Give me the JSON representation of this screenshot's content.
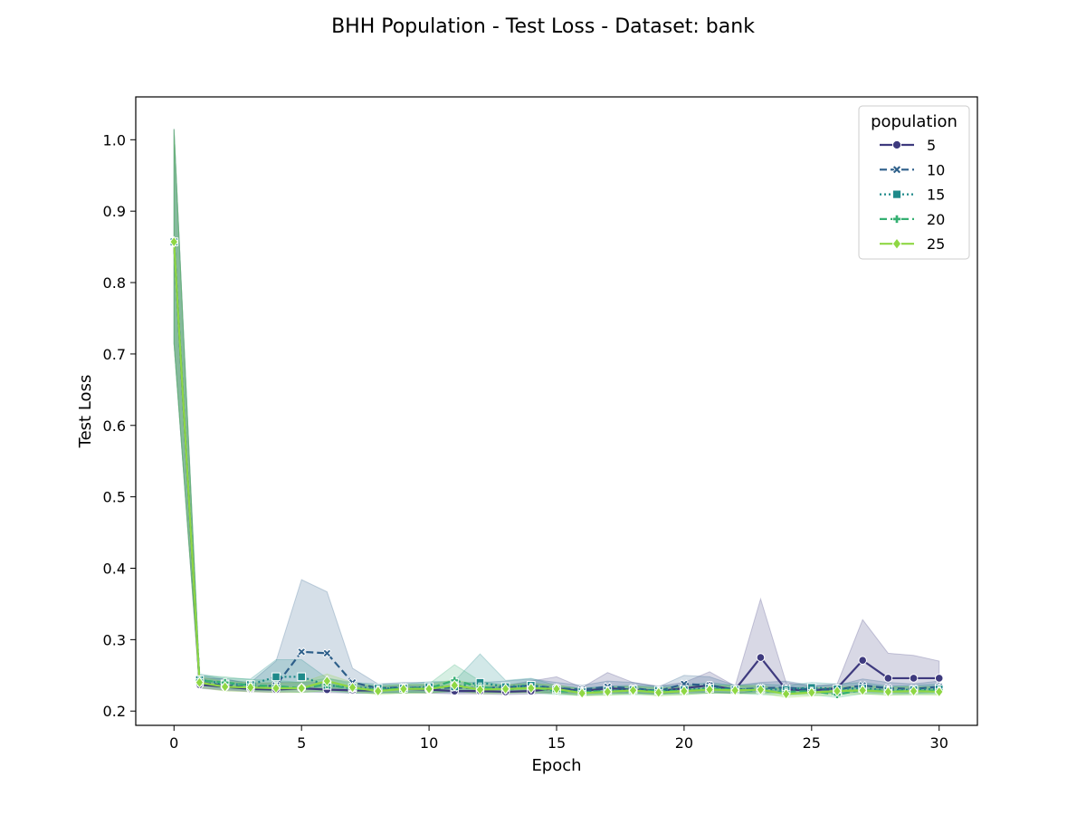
{
  "chart_data": {
    "type": "line",
    "title": "BHH Population - Test Loss - Dataset: bank",
    "xlabel": "Epoch",
    "ylabel": "Test Loss",
    "xlim": [
      -1.5,
      31.5
    ],
    "ylim": [
      0.18,
      1.06
    ],
    "xticks": [
      0,
      5,
      10,
      15,
      20,
      25,
      30
    ],
    "yticks": [
      0.2,
      0.3,
      0.4,
      0.5,
      0.6,
      0.7,
      0.8,
      0.9,
      1.0
    ],
    "xtick_labels": [
      "0",
      "5",
      "10",
      "15",
      "20",
      "25",
      "30"
    ],
    "ytick_labels": [
      "0.2",
      "0.3",
      "0.4",
      "0.5",
      "0.6",
      "0.7",
      "0.8",
      "0.9",
      "1.0"
    ],
    "grid": false,
    "legend": {
      "title": "population",
      "placement": "top-right"
    },
    "x": [
      0,
      1,
      2,
      3,
      4,
      5,
      6,
      7,
      8,
      9,
      10,
      11,
      12,
      13,
      14,
      15,
      16,
      17,
      18,
      19,
      20,
      21,
      22,
      23,
      24,
      25,
      26,
      27,
      28,
      29,
      30
    ],
    "series": [
      {
        "name": "5",
        "color": "#3e3a7e",
        "marker": "circle",
        "dash": "solid",
        "values": [
          0.857,
          0.237,
          0.234,
          0.231,
          0.23,
          0.232,
          0.23,
          0.229,
          0.229,
          0.231,
          0.23,
          0.228,
          0.228,
          0.227,
          0.228,
          0.232,
          0.228,
          0.232,
          0.23,
          0.228,
          0.232,
          0.236,
          0.23,
          0.275,
          0.23,
          0.229,
          0.232,
          0.271,
          0.246,
          0.246,
          0.246
        ],
        "band_low": [
          0.715,
          0.232,
          0.229,
          0.227,
          0.226,
          0.227,
          0.226,
          0.225,
          0.225,
          0.226,
          0.225,
          0.224,
          0.224,
          0.223,
          0.224,
          0.225,
          0.224,
          0.225,
          0.225,
          0.224,
          0.225,
          0.226,
          0.225,
          0.228,
          0.225,
          0.225,
          0.226,
          0.23,
          0.228,
          0.228,
          0.228
        ],
        "band_high": [
          1.015,
          0.246,
          0.245,
          0.238,
          0.24,
          0.24,
          0.24,
          0.235,
          0.234,
          0.236,
          0.236,
          0.234,
          0.233,
          0.236,
          0.242,
          0.248,
          0.233,
          0.254,
          0.24,
          0.235,
          0.24,
          0.255,
          0.235,
          0.357,
          0.24,
          0.235,
          0.238,
          0.328,
          0.281,
          0.278,
          0.27
        ]
      },
      {
        "name": "10",
        "color": "#2d5f8a",
        "marker": "x",
        "dash": "dashed",
        "values": [
          0.857,
          0.24,
          0.236,
          0.233,
          0.236,
          0.283,
          0.281,
          0.24,
          0.232,
          0.233,
          0.232,
          0.233,
          0.232,
          0.233,
          0.236,
          0.232,
          0.23,
          0.234,
          0.232,
          0.228,
          0.238,
          0.236,
          0.23,
          0.232,
          0.233,
          0.23,
          0.23,
          0.236,
          0.232,
          0.231,
          0.234
        ],
        "band_low": [
          0.715,
          0.233,
          0.23,
          0.228,
          0.228,
          0.23,
          0.229,
          0.228,
          0.226,
          0.227,
          0.226,
          0.226,
          0.226,
          0.226,
          0.227,
          0.226,
          0.225,
          0.226,
          0.226,
          0.223,
          0.227,
          0.227,
          0.225,
          0.226,
          0.226,
          0.225,
          0.225,
          0.227,
          0.226,
          0.225,
          0.227
        ],
        "band_high": [
          1.015,
          0.25,
          0.244,
          0.24,
          0.27,
          0.384,
          0.367,
          0.26,
          0.238,
          0.24,
          0.24,
          0.24,
          0.24,
          0.242,
          0.245,
          0.24,
          0.236,
          0.242,
          0.24,
          0.234,
          0.25,
          0.248,
          0.236,
          0.24,
          0.242,
          0.236,
          0.236,
          0.245,
          0.24,
          0.238,
          0.242
        ]
      },
      {
        "name": "15",
        "color": "#1f8a8a",
        "marker": "square",
        "dash": "dotted",
        "values": [
          0.857,
          0.244,
          0.238,
          0.237,
          0.248,
          0.248,
          0.236,
          0.233,
          0.232,
          0.232,
          0.234,
          0.234,
          0.24,
          0.234,
          0.236,
          0.23,
          0.227,
          0.229,
          0.23,
          0.229,
          0.23,
          0.232,
          0.23,
          0.231,
          0.23,
          0.233,
          0.231,
          0.232,
          0.229,
          0.23,
          0.231
        ],
        "band_low": [
          0.715,
          0.236,
          0.231,
          0.23,
          0.232,
          0.232,
          0.229,
          0.227,
          0.226,
          0.226,
          0.227,
          0.227,
          0.229,
          0.227,
          0.228,
          0.225,
          0.222,
          0.224,
          0.225,
          0.224,
          0.225,
          0.226,
          0.225,
          0.225,
          0.225,
          0.226,
          0.225,
          0.226,
          0.224,
          0.225,
          0.225
        ],
        "band_high": [
          1.015,
          0.252,
          0.246,
          0.245,
          0.272,
          0.272,
          0.246,
          0.24,
          0.238,
          0.238,
          0.241,
          0.242,
          0.28,
          0.243,
          0.246,
          0.236,
          0.232,
          0.235,
          0.236,
          0.235,
          0.236,
          0.24,
          0.236,
          0.238,
          0.236,
          0.24,
          0.238,
          0.24,
          0.235,
          0.236,
          0.238
        ]
      },
      {
        "name": "20",
        "color": "#35b072",
        "marker": "plus",
        "dash": "dashed",
        "values": [
          0.857,
          0.243,
          0.24,
          0.236,
          0.235,
          0.232,
          0.237,
          0.231,
          0.23,
          0.231,
          0.232,
          0.243,
          0.234,
          0.23,
          0.233,
          0.228,
          0.227,
          0.228,
          0.228,
          0.228,
          0.228,
          0.231,
          0.23,
          0.228,
          0.227,
          0.228,
          0.223,
          0.23,
          0.228,
          0.228,
          0.229
        ],
        "band_low": [
          0.715,
          0.236,
          0.233,
          0.229,
          0.228,
          0.226,
          0.228,
          0.225,
          0.225,
          0.225,
          0.226,
          0.228,
          0.226,
          0.225,
          0.226,
          0.223,
          0.222,
          0.223,
          0.223,
          0.223,
          0.223,
          0.225,
          0.225,
          0.223,
          0.222,
          0.223,
          0.219,
          0.224,
          0.223,
          0.223,
          0.224
        ],
        "band_high": [
          1.015,
          0.25,
          0.248,
          0.244,
          0.243,
          0.24,
          0.246,
          0.238,
          0.236,
          0.237,
          0.238,
          0.265,
          0.242,
          0.236,
          0.24,
          0.234,
          0.232,
          0.234,
          0.234,
          0.233,
          0.234,
          0.237,
          0.236,
          0.234,
          0.232,
          0.234,
          0.228,
          0.236,
          0.234,
          0.234,
          0.235
        ]
      },
      {
        "name": "25",
        "color": "#8fd744",
        "marker": "diamond",
        "dash": "solid",
        "values": [
          0.857,
          0.24,
          0.234,
          0.233,
          0.232,
          0.232,
          0.242,
          0.233,
          0.228,
          0.231,
          0.231,
          0.236,
          0.23,
          0.231,
          0.232,
          0.231,
          0.225,
          0.227,
          0.229,
          0.226,
          0.228,
          0.23,
          0.229,
          0.23,
          0.224,
          0.226,
          0.228,
          0.229,
          0.227,
          0.228,
          0.227
        ],
        "band_low": [
          0.715,
          0.233,
          0.228,
          0.227,
          0.226,
          0.226,
          0.229,
          0.227,
          0.223,
          0.225,
          0.225,
          0.228,
          0.224,
          0.225,
          0.226,
          0.225,
          0.221,
          0.222,
          0.224,
          0.221,
          0.223,
          0.225,
          0.224,
          0.225,
          0.219,
          0.221,
          0.223,
          0.224,
          0.222,
          0.223,
          0.222
        ],
        "band_high": [
          1.015,
          0.248,
          0.241,
          0.24,
          0.239,
          0.24,
          0.252,
          0.24,
          0.234,
          0.237,
          0.237,
          0.244,
          0.236,
          0.237,
          0.238,
          0.237,
          0.23,
          0.233,
          0.235,
          0.232,
          0.234,
          0.236,
          0.235,
          0.236,
          0.23,
          0.232,
          0.234,
          0.235,
          0.233,
          0.234,
          0.233
        ]
      }
    ]
  }
}
